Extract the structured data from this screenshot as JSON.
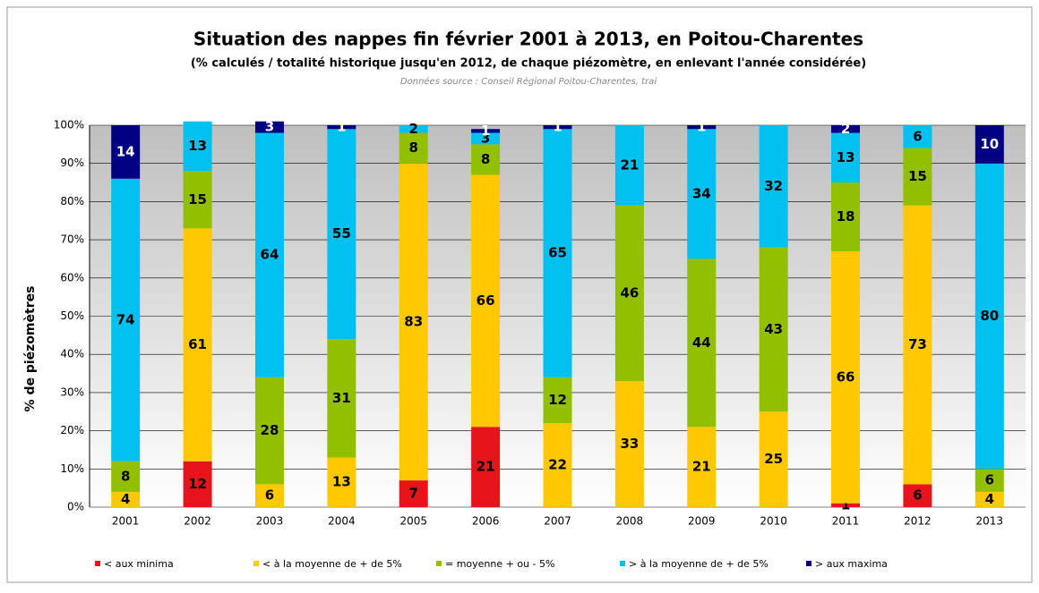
{
  "chart_data": {
    "type": "stacked_bar",
    "title": "Situation des nappes fin février 2001  à  2013, en Poitou-Charentes",
    "subtitle": "(% calculés / totalité historique jusqu'en 2012, de chaque piézomètre,  en enlevant l'année considérée)",
    "source": "Données source : Conseil Régional Poitou-Charentes, trai",
    "y_label": "% de piézomètres",
    "categories": [
      "2001",
      "2002",
      "2003",
      "2004",
      "2005",
      "2006",
      "2007",
      "2008",
      "2009",
      "2010",
      "2011",
      "2012",
      "2013"
    ],
    "series": [
      {
        "name": "< aux minima",
        "color": "#e8141b",
        "values": [
          0,
          12,
          0,
          0,
          7,
          21,
          0,
          0,
          0,
          0,
          1,
          6,
          0
        ]
      },
      {
        "name": "< à la moyenne de + de 5%",
        "color": "#ffc800",
        "values": [
          4,
          61,
          6,
          13,
          83,
          66,
          22,
          33,
          21,
          25,
          66,
          73,
          4
        ]
      },
      {
        "name": "= moyenne + ou - 5%",
        "color": "#92c000",
        "values": [
          8,
          15,
          28,
          31,
          8,
          8,
          12,
          46,
          44,
          43,
          18,
          15,
          6
        ]
      },
      {
        "name": "> à la moyenne de + de 5%",
        "color": "#00c0f0",
        "values": [
          74,
          13,
          64,
          55,
          2,
          3,
          65,
          21,
          34,
          32,
          13,
          6,
          80
        ]
      },
      {
        "name": "> aux maxima",
        "color": "#000080",
        "values": [
          14,
          0,
          3,
          1,
          0,
          1,
          1,
          0,
          1,
          0,
          2,
          0,
          10
        ]
      }
    ],
    "ylim": [
      0,
      100
    ],
    "yticks": [
      {
        "value": 0,
        "label": "0%"
      },
      {
        "value": 10,
        "label": "10%"
      },
      {
        "value": 20,
        "label": "20%"
      },
      {
        "value": 30,
        "label": "30%"
      },
      {
        "value": 40,
        "label": "40%"
      },
      {
        "value": 50,
        "label": "50%"
      },
      {
        "value": 60,
        "label": "60%"
      },
      {
        "value": 70,
        "label": "70%"
      },
      {
        "value": 80,
        "label": "80%"
      },
      {
        "value": 90,
        "label": "90%"
      },
      {
        "value": 100,
        "label": "100%"
      }
    ],
    "grid": true
  }
}
